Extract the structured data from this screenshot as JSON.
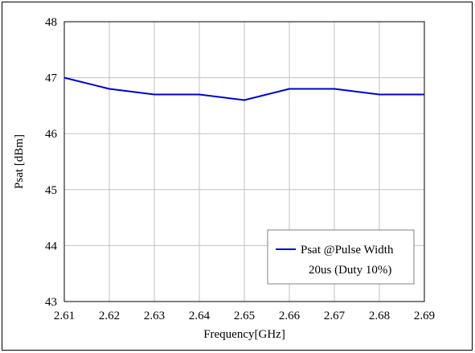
{
  "chart_data": {
    "type": "line",
    "xlabel": "Frequency[GHz]",
    "ylabel": "Psat [dBm]",
    "xlim": [
      2.61,
      2.69
    ],
    "ylim": [
      43,
      48
    ],
    "x_ticks": [
      "2.61",
      "2.62",
      "2.63",
      "2.64",
      "2.65",
      "2.66",
      "2.67",
      "2.68",
      "2.69"
    ],
    "y_ticks": [
      "43",
      "44",
      "45",
      "46",
      "47",
      "48"
    ],
    "grid": true,
    "legend_position": "bottom-right",
    "series": [
      {
        "name_line1": "Psat @Pulse Width",
        "name_line2": "20us (Duty 10%)",
        "color": "#0000cc",
        "x": [
          2.61,
          2.62,
          2.63,
          2.64,
          2.65,
          2.66,
          2.67,
          2.68,
          2.69
        ],
        "y": [
          47.0,
          46.8,
          46.7,
          46.7,
          46.6,
          46.8,
          46.8,
          46.7,
          46.7
        ]
      }
    ]
  }
}
